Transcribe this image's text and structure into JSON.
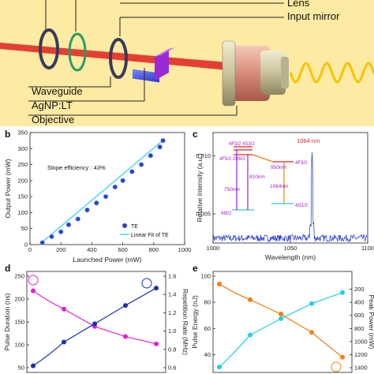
{
  "panel_a": {
    "labels": {
      "lens": "Lens",
      "input_mirror": "Input mirror",
      "waveguide": "Waveguide",
      "agnp": "AgNP:LT",
      "objective": "Objective"
    },
    "background_color": "#fdeaa3",
    "beam_color": "#e02020",
    "output_color": "#f6c400"
  },
  "panels": {
    "b": "b",
    "c": "c",
    "d": "d",
    "e": "e"
  },
  "chart_data": [
    {
      "id": "b",
      "type": "scatter",
      "xlabel": "Launched Power (mW)",
      "ylabel": "Output Power (mW)",
      "xlim": [
        0,
        1000
      ],
      "ylim": [
        0,
        350
      ],
      "xticks": [
        "0",
        "200",
        "400",
        "600",
        "800",
        "1000"
      ],
      "yticks": [
        "0",
        "50",
        "100",
        "150",
        "200",
        "250",
        "300",
        "350"
      ],
      "annotation": "Slope efficiency : 43%",
      "legend": [
        "TE",
        "Linear Fit of TE"
      ],
      "legend_position": "bottom-right",
      "series": [
        {
          "name": "TE",
          "x": [
            80,
            140,
            200,
            250,
            310,
            370,
            430,
            490,
            550,
            600,
            660,
            720,
            780,
            840,
            860
          ],
          "y": [
            6,
            25,
            40,
            62,
            80,
            108,
            130,
            150,
            180,
            200,
            228,
            250,
            278,
            305,
            325
          ]
        }
      ],
      "fit": {
        "name": "Linear Fit of TE",
        "x": [
          60,
          870
        ],
        "y": [
          0,
          330
        ]
      },
      "colors": {
        "points": "#2a43c8",
        "fit": "#5ad8f0"
      }
    },
    {
      "id": "c",
      "type": "line",
      "xlabel": "Wavelength (nm)",
      "ylabel": "Relative Intensity (a.u.)",
      "xlim": [
        1000,
        1100
      ],
      "ylim": [
        0.0025,
        0.012
      ],
      "xticks": [
        "1000",
        "1050",
        "1100"
      ],
      "yticks": [
        "0.005",
        "0.010"
      ],
      "peak_label": "1064 nm",
      "peak": {
        "x": 1064,
        "y": 0.0105
      },
      "noise_floor": 0.0028,
      "inset_labels": {
        "top_levels": "4F3/2 4S3/2",
        "mid_left": "4F5/2 2H9/2",
        "mid_right": "4F3/2",
        "bottom_left": "4I9/2",
        "bottom_right": "4I11/2",
        "t810": "810nm",
        "t750": "750nm",
        "t950": "950nm",
        "t1064": "1064nm"
      },
      "colors": {
        "spectrum": "#1a2fd8",
        "peak_label": "#d02020",
        "inset": "#a020c8"
      }
    },
    {
      "id": "d",
      "type": "line",
      "xlabel": "",
      "ylabel": "Pulse Duration (ns)",
      "y2label": "Repetition Rate (MHz)",
      "ylim": [
        50,
        250
      ],
      "y2lim": [
        0.6,
        1.6
      ],
      "yticks": [
        "250",
        "200",
        "150",
        "100",
        "50"
      ],
      "y2ticks": [
        "1.6",
        "1.4",
        "1.2",
        "1.0",
        "0.8",
        "0.6"
      ],
      "series": [
        {
          "name": "Pulse Duration",
          "axis": "left",
          "x": [
            1,
            2,
            3,
            4,
            5
          ],
          "y": [
            218,
            178,
            140,
            118,
            102
          ],
          "color": "#e020d0"
        },
        {
          "name": "Repetition Rate",
          "axis": "right",
          "x": [
            1,
            2,
            3,
            4,
            5
          ],
          "y": [
            0.62,
            0.88,
            1.08,
            1.28,
            1.47
          ],
          "color": "#1a30b0"
        }
      ]
    },
    {
      "id": "e",
      "type": "line",
      "xlabel": "",
      "ylabel": "Pulse Energy (nJ)",
      "y2label": "Peak Power (mW)",
      "ylim": [
        30,
        100
      ],
      "y2lim": [
        1400,
        0
      ],
      "yticks": [
        "100",
        "80",
        "60",
        "40"
      ],
      "y2ticks": [
        "200",
        "400",
        "600",
        "800",
        "1000",
        "1200",
        "1400"
      ],
      "series": [
        {
          "name": "Pulse Energy",
          "axis": "left",
          "x": [
            1,
            2,
            3,
            4,
            5
          ],
          "y": [
            94,
            82,
            71,
            57,
            38
          ],
          "color": "#f08010"
        },
        {
          "name": "Peak Power",
          "axis": "right",
          "x": [
            1,
            2,
            3,
            4,
            5
          ],
          "y": [
            1390,
            900,
            650,
            420,
            250
          ],
          "color": "#20d0e8"
        }
      ]
    }
  ]
}
